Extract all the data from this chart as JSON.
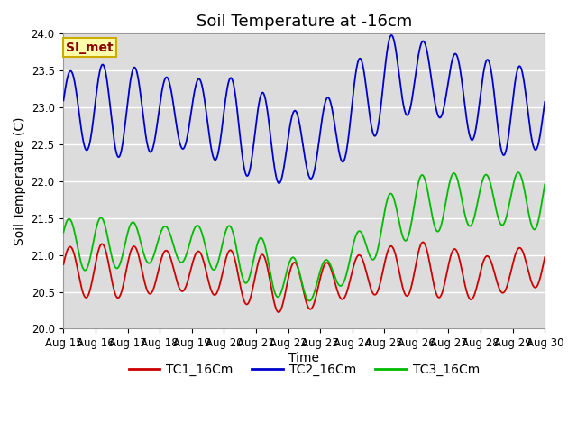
{
  "title": "Soil Temperature at -16cm",
  "xlabel": "Time",
  "ylabel": "Soil Temperature (C)",
  "ylim": [
    20.0,
    24.0
  ],
  "yticks": [
    20.0,
    20.5,
    21.0,
    21.5,
    22.0,
    22.5,
    23.0,
    23.5,
    24.0
  ],
  "xtick_labels": [
    "Aug 15",
    "Aug 16",
    "Aug 17",
    "Aug 18",
    "Aug 19",
    "Aug 20",
    "Aug 21",
    "Aug 22",
    "Aug 23",
    "Aug 24",
    "Aug 25",
    "Aug 26",
    "Aug 27",
    "Aug 28",
    "Aug 29",
    "Aug 30"
  ],
  "num_days": 15,
  "background_color": "#dcdcdc",
  "tc1_color": "#cc0000",
  "tc2_color": "#0000cc",
  "tc3_color": "#00bb00",
  "legend_labels": [
    "TC1_16Cm",
    "TC2_16Cm",
    "TC3_16Cm"
  ],
  "annotation_text": "SI_met",
  "annotation_bg": "#ffffaa",
  "annotation_border": "#ccaa00",
  "annotation_text_color": "#880000",
  "title_fontsize": 13,
  "label_fontsize": 10,
  "tick_fontsize": 8.5,
  "legend_fontsize": 10
}
